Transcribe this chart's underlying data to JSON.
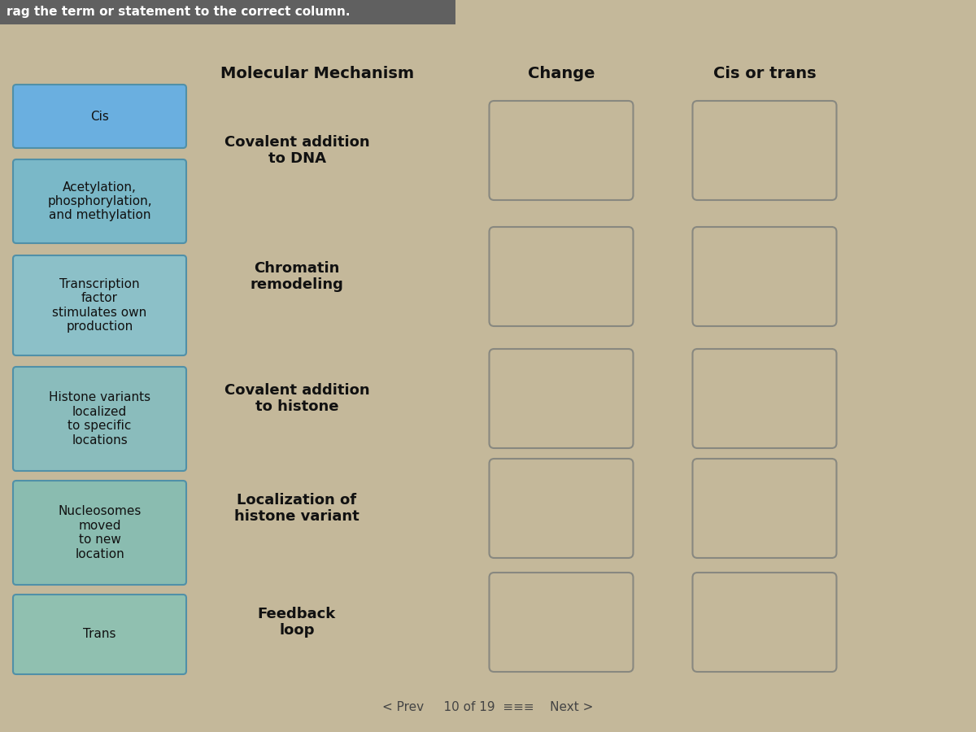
{
  "title": "rag the term or statement to the correct column.",
  "title_bg": "#606060",
  "title_text_color": "#ffffff",
  "bg_color": "#c4b89a",
  "bg_color2": "#bdb09a",
  "column_headers": [
    "Molecular Mechanism",
    "Change",
    "Cis or trans"
  ],
  "drag_labels": [
    "Cis",
    "Acetylation,\nphosphorylation,\nand methylation",
    "Transcription\nfactor\nstimulates own\nproduction",
    "Histone variants\nlocalized\nto specific\nlocations",
    "Nucleosomes\nmoved\nto new\nlocation",
    "Trans"
  ],
  "mech_labels": [
    "Covalent addition\nto DNA",
    "Chromatin\nremodeling",
    "Covalent addition\nto histone",
    "Localization of\nhistone variant",
    "Feedback\nloop"
  ],
  "drag_colors": [
    "#6aafe0",
    "#7ab8c8",
    "#8cc0c8",
    "#8abcbc",
    "#8abcb0",
    "#90c0b0"
  ],
  "drag_border_color": "#5090a8",
  "empty_box_border": "#888880",
  "empty_box_fill": "#c4b89a",
  "footer_text": "< Prev     10 of 19  ≡≡≡    Next >"
}
